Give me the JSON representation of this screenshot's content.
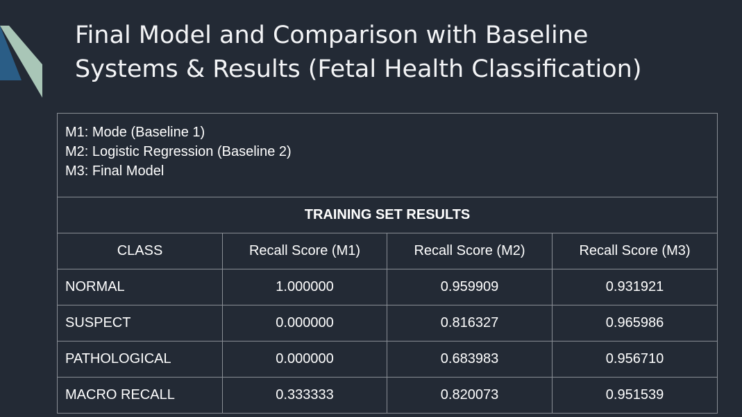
{
  "title": {
    "line1": "Final Model and Comparison with Baseline",
    "line2": "Systems & Results (Fetal Health Classification)"
  },
  "colors": {
    "background": "#232a35",
    "accent_light": "#a9c6b7",
    "accent_dark": "#2a5d86",
    "table_border": "#8a8f96"
  },
  "legend": [
    "M1: Mode (Baseline 1)",
    "M2: Logistic Regression (Baseline 2)",
    "M3: Final Model"
  ],
  "section_title": "TRAINING SET RESULTS",
  "headers": [
    "CLASS",
    "Recall Score (M1)",
    "Recall Score (M2)",
    "Recall Score (M3)"
  ],
  "rows": [
    [
      "NORMAL",
      "1.000000",
      "0.959909",
      "0.931921"
    ],
    [
      "SUSPECT",
      "0.000000",
      "0.816327",
      "0.965986"
    ],
    [
      "PATHOLOGICAL",
      "0.000000",
      "0.683983",
      "0.956710"
    ],
    [
      "MACRO RECALL",
      "0.333333",
      "0.820073",
      "0.951539"
    ]
  ]
}
